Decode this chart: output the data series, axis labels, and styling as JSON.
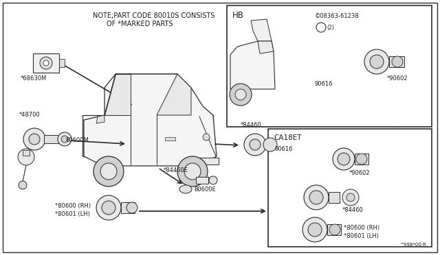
{
  "bg_color": "#ffffff",
  "line_color": "#2a2a2a",
  "text_color": "#1a1a1a",
  "note_text_line1": "NOTE;PART CODE 80010S CONSISTS",
  "note_text_line2": "OF *MARKED PARTS",
  "hb_label": "HB",
  "ca18et_label": "CA18ET",
  "s_part": "©08363-61238",
  "s_part2": "(2)",
  "hb_90616": "90616",
  "hb_90602": "*90602",
  "ca_90616": "90616",
  "ca_90602": "*90602",
  "ca_84460": "*84460",
  "ca_80600": "*80600 (RH)",
  "ca_80601": "*80601 (LH)",
  "label_68630M": "*68630M",
  "label_48700": "*48700",
  "label_80600M": "80600M",
  "label_84460": "*84460",
  "label_84460E": "*84460E",
  "label_80600E": "80600E",
  "label_80600RH": "*80600 (RH)",
  "label_80601LH": "*80601 (LH)",
  "watermark": "^998*00·R"
}
